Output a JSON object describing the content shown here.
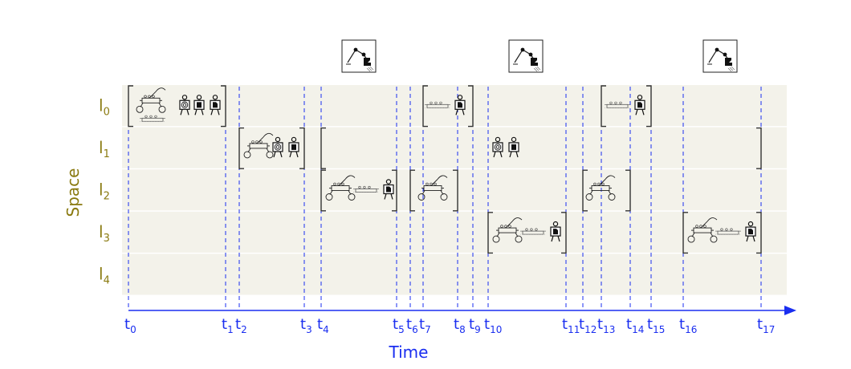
{
  "y_axis_title": "Space",
  "x_axis_title": "Time",
  "lanes": [
    {
      "base": "l",
      "sub": "0"
    },
    {
      "base": "l",
      "sub": "1"
    },
    {
      "base": "l",
      "sub": "2"
    },
    {
      "base": "l",
      "sub": "3"
    },
    {
      "base": "l",
      "sub": "4"
    }
  ],
  "time_ticks": [
    {
      "base": "t",
      "sub": "0"
    },
    {
      "base": "t",
      "sub": "1"
    },
    {
      "base": "t",
      "sub": "2"
    },
    {
      "base": "t",
      "sub": "3"
    },
    {
      "base": "t",
      "sub": "4"
    },
    {
      "base": "t",
      "sub": "5"
    },
    {
      "base": "t",
      "sub": "6"
    },
    {
      "base": "t",
      "sub": "7"
    },
    {
      "base": "t",
      "sub": "8"
    },
    {
      "base": "t",
      "sub": "9"
    },
    {
      "base": "t",
      "sub": "10"
    },
    {
      "base": "t",
      "sub": "11"
    },
    {
      "base": "t",
      "sub": "12"
    },
    {
      "base": "t",
      "sub": "13"
    },
    {
      "base": "t",
      "sub": "14"
    },
    {
      "base": "t",
      "sub": "15"
    },
    {
      "base": "t",
      "sub": "16"
    },
    {
      "base": "t",
      "sub": "17"
    }
  ],
  "colors": {
    "lane_background": "#f3f2ea",
    "lane_separator": "#ffffff",
    "label_color": "#8a7a10",
    "axis_color": "#1a2ef0",
    "bracket_color": "#333333",
    "icon_color": "#222222"
  },
  "robot_arm_icons": [
    {
      "name": "robot-arm-icon-1"
    },
    {
      "name": "robot-arm-icon-2"
    },
    {
      "name": "robot-arm-icon-3"
    }
  ],
  "intervals": [
    {
      "lane": 0,
      "start": 0,
      "end": 1,
      "contents": [
        "mobile-manipulator-icon",
        "conveyor-icon",
        "target-person-icon",
        "chart-person-icon",
        "document-person-icon"
      ]
    },
    {
      "lane": 1,
      "start": 2,
      "end": 3,
      "contents": [
        "mobile-manipulator-icon",
        "target-person-icon",
        "chart-person-icon"
      ]
    },
    {
      "lane": 1,
      "start": 4,
      "end": 17,
      "contents": [
        "target-person-icon",
        "chart-person-icon"
      ]
    },
    {
      "lane": 2,
      "start": 4,
      "end": 5,
      "contents": [
        "mobile-manipulator-icon",
        "conveyor-icon",
        "document-person-icon"
      ]
    },
    {
      "lane": 2,
      "start": 6,
      "end": 8,
      "contents": [
        "mobile-manipulator-icon"
      ]
    },
    {
      "lane": 0,
      "start": 7,
      "end": 9,
      "contents": [
        "conveyor-icon",
        "document-person-icon"
      ]
    },
    {
      "lane": 3,
      "start": 10,
      "end": 11,
      "contents": [
        "mobile-manipulator-icon",
        "conveyor-icon",
        "document-person-icon"
      ]
    },
    {
      "lane": 2,
      "start": 12,
      "end": 14,
      "contents": [
        "mobile-manipulator-icon"
      ]
    },
    {
      "lane": 0,
      "start": 13,
      "end": 15,
      "contents": [
        "conveyor-icon",
        "document-person-icon"
      ]
    },
    {
      "lane": 3,
      "start": 16,
      "end": 17,
      "contents": [
        "mobile-manipulator-icon",
        "conveyor-icon",
        "document-person-icon"
      ]
    }
  ]
}
